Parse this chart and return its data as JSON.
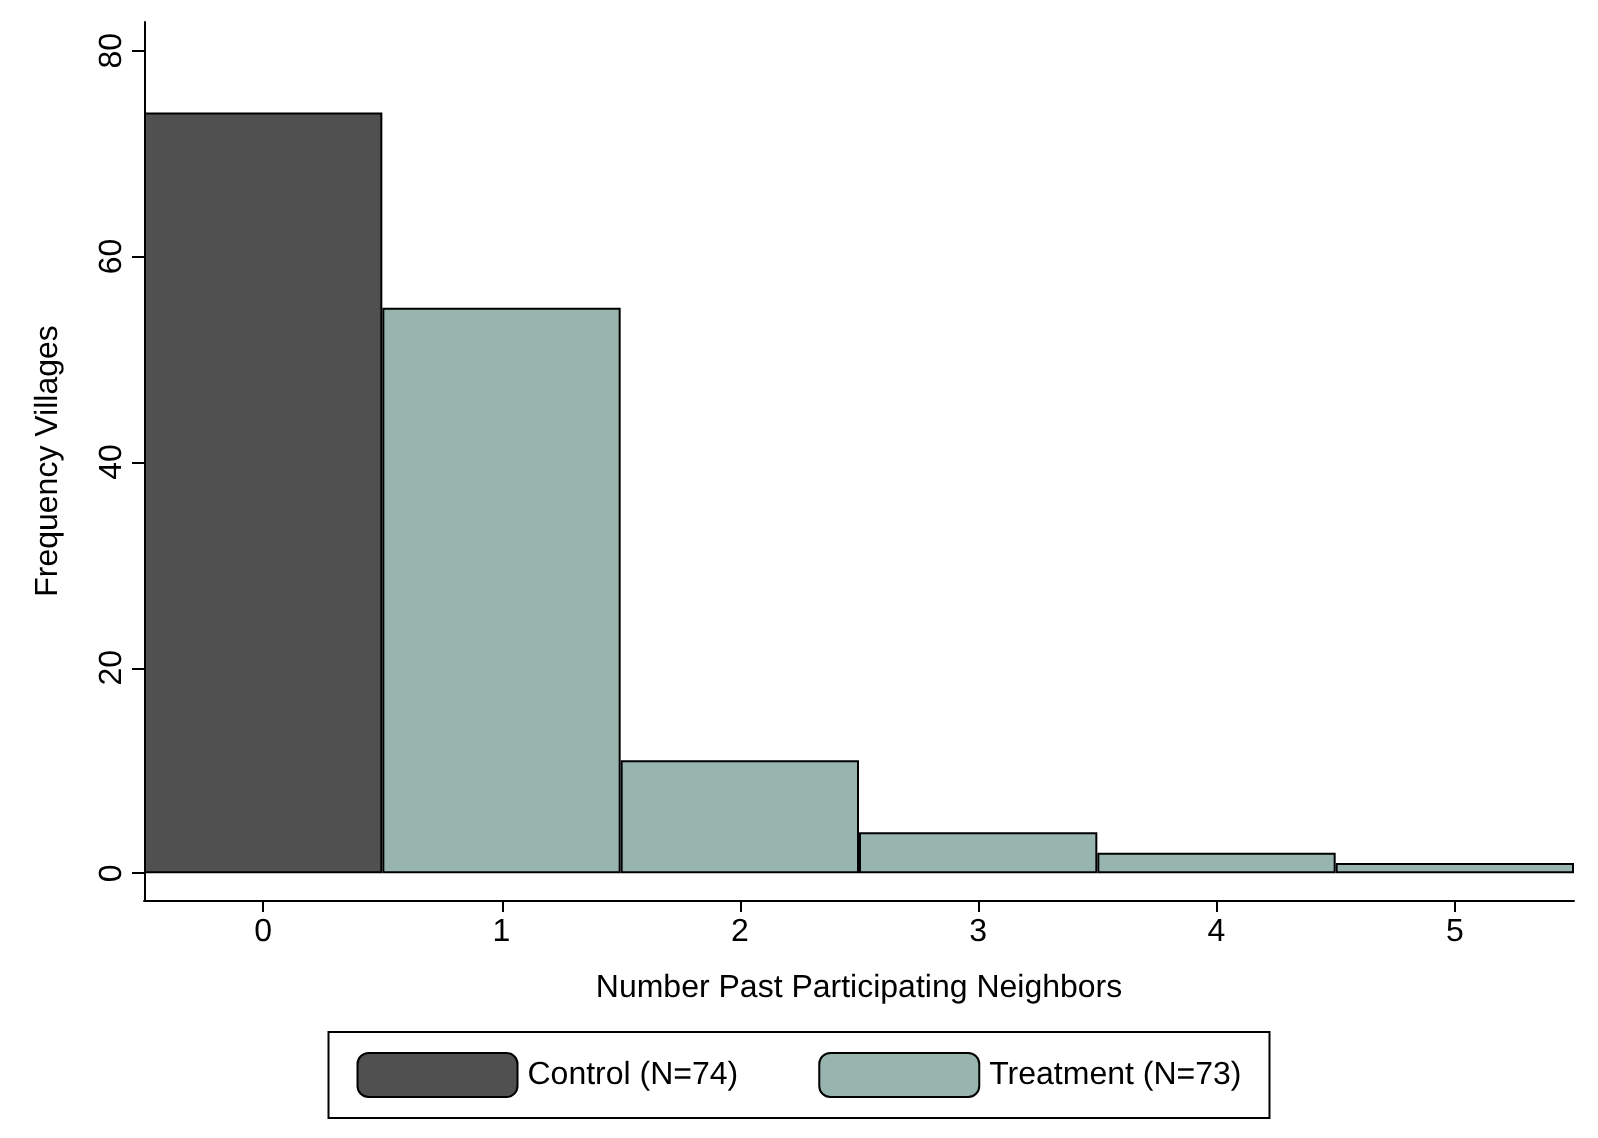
{
  "chart_data": {
    "type": "bar",
    "xlabel": "Number Past Participating Neighbors",
    "ylabel": "Frequency Villages",
    "categories": [
      "0",
      "1",
      "2",
      "3",
      "4",
      "5"
    ],
    "series": [
      {
        "name": "Control (N=74)",
        "color": "#505050",
        "values": [
          74,
          null,
          null,
          null,
          null,
          null
        ]
      },
      {
        "name": "Treatment (N=73)",
        "color": "#97b5ae",
        "values": [
          null,
          55,
          11,
          4,
          2,
          1
        ]
      }
    ],
    "ylim": [
      -2.6,
      82.8
    ],
    "yticks": [
      0,
      20,
      40,
      60,
      80
    ],
    "grid": false,
    "legend": "bottom"
  }
}
